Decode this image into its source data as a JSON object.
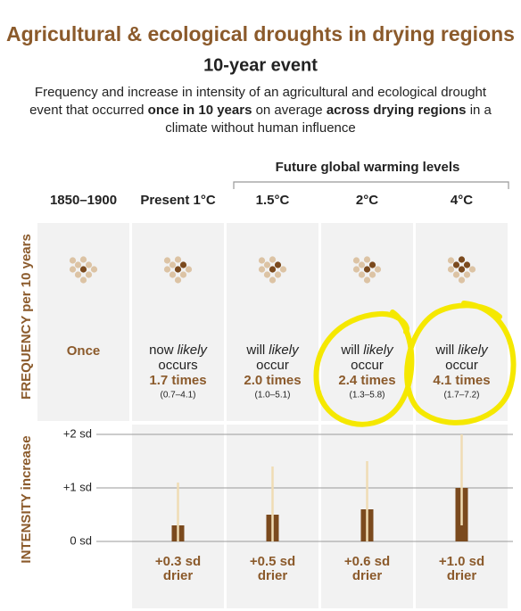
{
  "title": "Agricultural & ecological droughts in drying regions",
  "subtitle": "10-year event",
  "description": [
    {
      "text": "Frequency and increase in intensity of an agricultural and ecological drought event that occurred ",
      "bold": false
    },
    {
      "text": "once in 10 years",
      "bold": true
    },
    {
      "text": " on average ",
      "bold": false
    },
    {
      "text": "across drying regions",
      "bold": true
    },
    {
      "text": " in a climate without human influence",
      "bold": false
    }
  ],
  "future_label": "Future global warming levels",
  "frequency": {
    "axis_label": "FREQUENCY per 10 years",
    "entries": [
      {
        "text": "Once",
        "highlighted_dots": 1
      },
      {
        "lead": "now",
        "italic": "likely",
        "verb": "occurs",
        "times": "1.7 times",
        "range": "(0.7–4.1)",
        "highlighted_dots": 2
      },
      {
        "lead": "will",
        "italic": "likely",
        "verb": "occur",
        "times": "2.0 times",
        "range": "(1.0–5.1)",
        "highlighted_dots": 2
      },
      {
        "lead": "will",
        "italic": "likely",
        "verb": "occur",
        "times": "2.4 times",
        "range": "(1.3–5.8)",
        "highlighted_dots": 2
      },
      {
        "lead": "will",
        "italic": "likely",
        "verb": "occur",
        "times": "4.1 times",
        "range": "(1.7–7.2)",
        "highlighted_dots": 4
      }
    ]
  },
  "chart_data": {
    "type": "bar",
    "axis_label": "INTENSITY increase",
    "categories": [
      "1850–1900",
      "Present 1°C",
      "1.5°C",
      "2°C",
      "4°C"
    ],
    "values": [
      null,
      0.3,
      0.5,
      0.6,
      1.0
    ],
    "value_labels": [
      null,
      "+0.3 sd",
      "+0.5 sd",
      "+0.6 sd",
      "+1.0 sd"
    ],
    "value_note": "drier",
    "error_low": [
      null,
      0,
      0,
      0,
      0.3
    ],
    "error_high": [
      null,
      1.1,
      1.4,
      1.5,
      2.0
    ],
    "color": "#7b4a1e",
    "error_color": "#f0dcb4",
    "ylim": [
      0,
      2
    ],
    "yticks": [
      {
        "value": 0,
        "label": "0 sd"
      },
      {
        "value": 1,
        "label": "+1 sd"
      },
      {
        "value": 2,
        "label": "+2 sd"
      }
    ],
    "grid": true
  }
}
